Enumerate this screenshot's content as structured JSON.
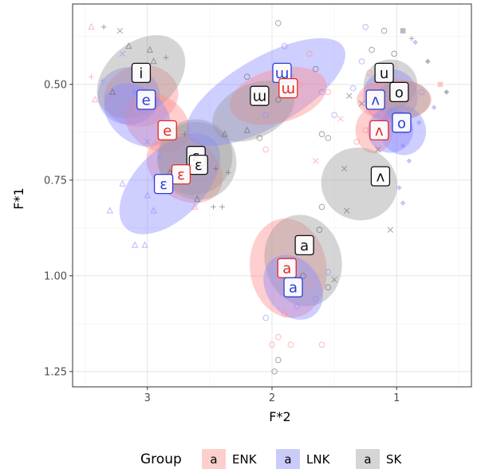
{
  "chart_data": {
    "type": "scatter",
    "title": "",
    "xlabel": "F*2",
    "ylabel": "F*1",
    "x_reversed": true,
    "y_reversed": true,
    "xlim": [
      3.6,
      0.4
    ],
    "ylim": [
      0.29,
      1.29
    ],
    "x_ticks": [
      3,
      2,
      1
    ],
    "x_tick_labels": [
      "3",
      "2",
      "1"
    ],
    "y_ticks": [
      0.5,
      0.75,
      1.0,
      1.25
    ],
    "y_tick_labels": [
      "0.50",
      "0.75",
      "1.00",
      "1.25"
    ],
    "grid": true,
    "legend_position": "bottom",
    "legend": {
      "title": "Group",
      "entries": [
        {
          "symbol": "a",
          "label": "ENK",
          "color": "#f8766d"
        },
        {
          "symbol": "a",
          "label": "LNK",
          "color": "#6a6af0"
        },
        {
          "symbol": "a",
          "label": "SK",
          "color": "#888888"
        }
      ]
    },
    "series_colors": {
      "ENK": {
        "stroke": "#e8281f",
        "fill": "#ff8a8a"
      },
      "LNK": {
        "stroke": "#2a3fd6",
        "fill": "#8a8aff"
      },
      "SK": {
        "stroke": "#111111",
        "fill": "#9a9a9a"
      }
    },
    "ellipses": [
      {
        "group": "ENK",
        "vowel": "i",
        "cx": 3.05,
        "cy": 0.53,
        "rx": 0.3,
        "ry": 0.08,
        "angle": -10
      },
      {
        "group": "LNK",
        "vowel": "i",
        "cx": 3.15,
        "cy": 0.53,
        "rx": 0.25,
        "ry": 0.075,
        "angle": 0
      },
      {
        "group": "SK",
        "vowel": "i",
        "cx": 3.05,
        "cy": 0.48,
        "rx": 0.4,
        "ry": 0.09,
        "angle": -40
      },
      {
        "group": "ENK",
        "vowel": "e",
        "cx": 2.92,
        "cy": 0.6,
        "rx": 0.28,
        "ry": 0.07,
        "angle": 35
      },
      {
        "group": "LNK",
        "vowel": "e",
        "cx": 3.08,
        "cy": 0.58,
        "rx": 0.3,
        "ry": 0.07,
        "angle": 40
      },
      {
        "group": "SK",
        "vowel": "e",
        "cx": 2.62,
        "cy": 0.69,
        "rx": 0.3,
        "ry": 0.1,
        "angle": 40
      },
      {
        "group": "ENK",
        "vowel": "ɛ",
        "cx": 2.7,
        "cy": 0.72,
        "rx": 0.33,
        "ry": 0.08,
        "angle": 35
      },
      {
        "group": "LNK",
        "vowel": "ɛ",
        "cx": 2.82,
        "cy": 0.76,
        "rx": 0.5,
        "ry": 0.09,
        "angle": -45
      },
      {
        "group": "SK",
        "vowel": "ɛ",
        "cx": 2.6,
        "cy": 0.7,
        "rx": 0.32,
        "ry": 0.1,
        "angle": 40
      },
      {
        "group": "LNK",
        "vowel": "ɯ",
        "cx": 2.05,
        "cy": 0.52,
        "rx": 0.72,
        "ry": 0.09,
        "angle": -30
      },
      {
        "group": "ENK",
        "vowel": "ɯ",
        "cx": 1.95,
        "cy": 0.53,
        "rx": 0.4,
        "ry": 0.07,
        "angle": -15
      },
      {
        "group": "SK",
        "vowel": "ɯ",
        "cx": 2.15,
        "cy": 0.57,
        "rx": 0.35,
        "ry": 0.07,
        "angle": -25
      },
      {
        "group": "ENK",
        "vowel": "a",
        "cx": 1.87,
        "cy": 0.98,
        "rx": 0.4,
        "ry": 0.1,
        "angle": 82
      },
      {
        "group": "SK",
        "vowel": "a",
        "cx": 1.75,
        "cy": 0.96,
        "rx": 0.37,
        "ry": 0.1,
        "angle": 76
      },
      {
        "group": "LNK",
        "vowel": "a",
        "cx": 1.83,
        "cy": 1.03,
        "rx": 0.28,
        "ry": 0.07,
        "angle": 55
      },
      {
        "group": "SK",
        "vowel": "u",
        "cx": 1.05,
        "cy": 0.5,
        "rx": 0.2,
        "ry": 0.07,
        "angle": 85
      },
      {
        "group": "LNK",
        "vowel": "u",
        "cx": 1.05,
        "cy": 0.53,
        "rx": 0.22,
        "ry": 0.07,
        "angle": 0
      },
      {
        "group": "ENK",
        "vowel": "o",
        "cx": 1.02,
        "cy": 0.54,
        "rx": 0.3,
        "ry": 0.055,
        "angle": 0
      },
      {
        "group": "LNK",
        "vowel": "o",
        "cx": 0.95,
        "cy": 0.62,
        "rx": 0.2,
        "ry": 0.06,
        "angle": 75
      },
      {
        "group": "SK",
        "vowel": "o",
        "cx": 0.95,
        "cy": 0.54,
        "rx": 0.22,
        "ry": 0.05,
        "angle": 0
      },
      {
        "group": "ENK",
        "vowel": "ʌ",
        "cx": 1.18,
        "cy": 0.62,
        "rx": 0.15,
        "ry": 0.06,
        "angle": 0
      },
      {
        "group": "LNK",
        "vowel": "ʌ",
        "cx": 1.05,
        "cy": 0.62,
        "rx": 0.18,
        "ry": 0.06,
        "angle": 70
      },
      {
        "group": "SK",
        "vowel": "ʌ",
        "cx": 1.3,
        "cy": 0.76,
        "rx": 0.29,
        "ry": 0.1,
        "angle": -70
      }
    ],
    "vowel_labels": [
      {
        "vowel": "i",
        "group": "SK",
        "x": 3.05,
        "y": 0.47
      },
      {
        "vowel": "e",
        "group": "LNK",
        "x": 3.01,
        "y": 0.54
      },
      {
        "vowel": "e",
        "group": "ENK",
        "x": 2.84,
        "y": 0.62
      },
      {
        "vowel": "ɛ",
        "group": "SK",
        "x": 2.61,
        "y": 0.687
      },
      {
        "vowel": "ɛ",
        "group": "SK",
        "x": 2.59,
        "y": 0.71
      },
      {
        "vowel": "ɛ",
        "group": "ENK",
        "x": 2.73,
        "y": 0.735
      },
      {
        "vowel": "ɛ",
        "group": "LNK",
        "x": 2.87,
        "y": 0.76
      },
      {
        "vowel": "ɯ",
        "group": "LNK",
        "x": 1.92,
        "y": 0.47
      },
      {
        "vowel": "ɯ",
        "group": "ENK",
        "x": 1.87,
        "y": 0.51
      },
      {
        "vowel": "ɯ",
        "group": "SK",
        "x": 2.1,
        "y": 0.53
      },
      {
        "vowel": "u",
        "group": "SK",
        "x": 1.1,
        "y": 0.47
      },
      {
        "vowel": "ʌ",
        "group": "LNK",
        "x": 1.17,
        "y": 0.54
      },
      {
        "vowel": "o",
        "group": "SK",
        "x": 0.98,
        "y": 0.52
      },
      {
        "vowel": "o",
        "group": "LNK",
        "x": 0.96,
        "y": 0.6
      },
      {
        "vowel": "ʌ",
        "group": "ENK",
        "x": 1.14,
        "y": 0.62
      },
      {
        "vowel": "ʌ",
        "group": "SK",
        "x": 1.13,
        "y": 0.74
      },
      {
        "vowel": "a",
        "group": "SK",
        "x": 1.74,
        "y": 0.92
      },
      {
        "vowel": "a",
        "group": "ENK",
        "x": 1.88,
        "y": 0.98
      },
      {
        "vowel": "a",
        "group": "LNK",
        "x": 1.83,
        "y": 1.03
      }
    ],
    "points": [
      {
        "g": "SK",
        "x": 3.35,
        "y": 0.35,
        "s": "plus"
      },
      {
        "g": "SK",
        "x": 3.22,
        "y": 0.36,
        "s": "cross"
      },
      {
        "g": "ENK",
        "x": 3.45,
        "y": 0.35,
        "s": "triangle"
      },
      {
        "g": "LNK",
        "x": 3.2,
        "y": 0.42,
        "s": "cross"
      },
      {
        "g": "SK",
        "x": 3.15,
        "y": 0.4,
        "s": "triangle"
      },
      {
        "g": "SK",
        "x": 2.98,
        "y": 0.41,
        "s": "triangle"
      },
      {
        "g": "SK",
        "x": 2.95,
        "y": 0.44,
        "s": "triangle"
      },
      {
        "g": "SK",
        "x": 2.85,
        "y": 0.43,
        "s": "plus"
      },
      {
        "g": "ENK",
        "x": 3.3,
        "y": 0.51,
        "s": "triangle"
      },
      {
        "g": "ENK",
        "x": 3.42,
        "y": 0.54,
        "s": "triangle"
      },
      {
        "g": "LNK",
        "x": 3.36,
        "y": 0.49,
        "s": "plus"
      },
      {
        "g": "SK",
        "x": 3.28,
        "y": 0.52,
        "s": "triangle"
      },
      {
        "g": "ENK",
        "x": 3.45,
        "y": 0.48,
        "s": "plus"
      },
      {
        "g": "LNK",
        "x": 3.1,
        "y": 0.52,
        "s": "square"
      },
      {
        "g": "SK",
        "x": 3.05,
        "y": 0.55,
        "s": "triangle"
      },
      {
        "g": "ENK",
        "x": 2.9,
        "y": 0.57,
        "s": "plus"
      },
      {
        "g": "ENK",
        "x": 2.8,
        "y": 0.62,
        "s": "plus"
      },
      {
        "g": "LNK",
        "x": 3.0,
        "y": 0.65,
        "s": "cross"
      },
      {
        "g": "SK",
        "x": 2.7,
        "y": 0.63,
        "s": "plus"
      },
      {
        "g": "SK",
        "x": 2.55,
        "y": 0.67,
        "s": "plus"
      },
      {
        "g": "ENK",
        "x": 2.65,
        "y": 0.7,
        "s": "plus"
      },
      {
        "g": "LNK",
        "x": 2.9,
        "y": 0.69,
        "s": "plus"
      },
      {
        "g": "SK",
        "x": 2.45,
        "y": 0.72,
        "s": "plus"
      },
      {
        "g": "LNK",
        "x": 3.2,
        "y": 0.76,
        "s": "triangle"
      },
      {
        "g": "SK",
        "x": 2.82,
        "y": 0.73,
        "s": "triangle"
      },
      {
        "g": "ENK",
        "x": 2.75,
        "y": 0.78,
        "s": "triangle"
      },
      {
        "g": "SK",
        "x": 2.6,
        "y": 0.8,
        "s": "triangle"
      },
      {
        "g": "LNK",
        "x": 3.0,
        "y": 0.79,
        "s": "triangle"
      },
      {
        "g": "LNK",
        "x": 3.3,
        "y": 0.83,
        "s": "triangle"
      },
      {
        "g": "LNK",
        "x": 2.95,
        "y": 0.83,
        "s": "triangle"
      },
      {
        "g": "LNK",
        "x": 3.1,
        "y": 0.92,
        "s": "triangle"
      },
      {
        "g": "LNK",
        "x": 3.02,
        "y": 0.92,
        "s": "triangle"
      },
      {
        "g": "SK",
        "x": 2.47,
        "y": 0.82,
        "s": "plus"
      },
      {
        "g": "SK",
        "x": 2.4,
        "y": 0.82,
        "s": "plus"
      },
      {
        "g": "ENK",
        "x": 2.62,
        "y": 0.82,
        "s": "triangle"
      },
      {
        "g": "SK",
        "x": 2.35,
        "y": 0.73,
        "s": "plus"
      },
      {
        "g": "SK",
        "x": 2.38,
        "y": 0.63,
        "s": "triangle"
      },
      {
        "g": "SK",
        "x": 2.2,
        "y": 0.62,
        "s": "triangle"
      },
      {
        "g": "LNK",
        "x": 2.05,
        "y": 0.58,
        "s": "circle"
      },
      {
        "g": "SK",
        "x": 1.95,
        "y": 0.54,
        "s": "circle"
      },
      {
        "g": "LNK",
        "x": 1.85,
        "y": 0.48,
        "s": "circle"
      },
      {
        "g": "ENK",
        "x": 1.78,
        "y": 0.5,
        "s": "circle"
      },
      {
        "g": "SK",
        "x": 1.65,
        "y": 0.46,
        "s": "circle"
      },
      {
        "g": "LNK",
        "x": 1.6,
        "y": 0.52,
        "s": "circle"
      },
      {
        "g": "ENK",
        "x": 1.55,
        "y": 0.52,
        "s": "circle"
      },
      {
        "g": "SK",
        "x": 1.95,
        "y": 0.34,
        "s": "circle"
      },
      {
        "g": "LNK",
        "x": 1.9,
        "y": 0.4,
        "s": "circle"
      },
      {
        "g": "SK",
        "x": 2.1,
        "y": 0.64,
        "s": "circle"
      },
      {
        "g": "SK",
        "x": 2.2,
        "y": 0.48,
        "s": "circle"
      },
      {
        "g": "ENK",
        "x": 1.7,
        "y": 0.42,
        "s": "circle"
      },
      {
        "g": "ENK",
        "x": 1.45,
        "y": 0.59,
        "s": "cross"
      },
      {
        "g": "ENK",
        "x": 1.65,
        "y": 0.7,
        "s": "cross"
      },
      {
        "g": "SK",
        "x": 1.6,
        "y": 0.63,
        "s": "circle"
      },
      {
        "g": "LNK",
        "x": 1.5,
        "y": 0.58,
        "s": "circle"
      },
      {
        "g": "SK",
        "x": 1.55,
        "y": 0.64,
        "s": "circle"
      },
      {
        "g": "ENK",
        "x": 2.05,
        "y": 0.67,
        "s": "circle"
      },
      {
        "g": "ENK",
        "x": 1.9,
        "y": 1.1,
        "s": "circle"
      },
      {
        "g": "ENK",
        "x": 1.95,
        "y": 1.16,
        "s": "circle"
      },
      {
        "g": "ENK",
        "x": 1.85,
        "y": 1.18,
        "s": "circle"
      },
      {
        "g": "ENK",
        "x": 2.0,
        "y": 1.18,
        "s": "circle"
      },
      {
        "g": "SK",
        "x": 1.98,
        "y": 1.25,
        "s": "circle"
      },
      {
        "g": "SK",
        "x": 1.95,
        "y": 1.22,
        "s": "circle"
      },
      {
        "g": "LNK",
        "x": 2.05,
        "y": 1.11,
        "s": "circle"
      },
      {
        "g": "SK",
        "x": 1.75,
        "y": 1.0,
        "s": "circle"
      },
      {
        "g": "SK",
        "x": 1.6,
        "y": 0.82,
        "s": "circle"
      },
      {
        "g": "SK",
        "x": 1.62,
        "y": 0.88,
        "s": "circle"
      },
      {
        "g": "ENK",
        "x": 1.72,
        "y": 0.9,
        "s": "circle"
      },
      {
        "g": "SK",
        "x": 1.5,
        "y": 1.01,
        "s": "cross"
      },
      {
        "g": "LNK",
        "x": 1.55,
        "y": 0.99,
        "s": "circle"
      },
      {
        "g": "LNK",
        "x": 1.65,
        "y": 1.06,
        "s": "circle"
      },
      {
        "g": "ENK",
        "x": 1.6,
        "y": 1.18,
        "s": "circle"
      },
      {
        "g": "SK",
        "x": 1.55,
        "y": 1.03,
        "s": "circle"
      },
      {
        "g": "LNK",
        "x": 1.8,
        "y": 1.08,
        "s": "circle"
      },
      {
        "g": "ENK",
        "x": 1.7,
        "y": 1.02,
        "s": "circle"
      },
      {
        "g": "SK",
        "x": 1.1,
        "y": 0.36,
        "s": "circle"
      },
      {
        "g": "LNK",
        "x": 1.25,
        "y": 0.35,
        "s": "circle"
      },
      {
        "g": "SK",
        "x": 0.95,
        "y": 0.36,
        "s": "square"
      },
      {
        "g": "SK",
        "x": 0.88,
        "y": 0.38,
        "s": "plus"
      },
      {
        "g": "LNK",
        "x": 0.85,
        "y": 0.39,
        "s": "diamond"
      },
      {
        "g": "SK",
        "x": 1.2,
        "y": 0.41,
        "s": "circle"
      },
      {
        "g": "SK",
        "x": 1.02,
        "y": 0.42,
        "s": "circle"
      },
      {
        "g": "LNK",
        "x": 1.28,
        "y": 0.44,
        "s": "circle"
      },
      {
        "g": "ENK",
        "x": 1.22,
        "y": 0.47,
        "s": "circle"
      },
      {
        "g": "SK",
        "x": 0.75,
        "y": 0.44,
        "s": "diamond"
      },
      {
        "g": "LNK",
        "x": 0.8,
        "y": 0.52,
        "s": "circle"
      },
      {
        "g": "ENK",
        "x": 0.65,
        "y": 0.5,
        "s": "square"
      },
      {
        "g": "SK",
        "x": 0.6,
        "y": 0.52,
        "s": "diamond"
      },
      {
        "g": "LNK",
        "x": 0.7,
        "y": 0.56,
        "s": "diamond"
      },
      {
        "g": "SK",
        "x": 1.28,
        "y": 0.55,
        "s": "cross"
      },
      {
        "g": "SK",
        "x": 1.38,
        "y": 0.53,
        "s": "cross"
      },
      {
        "g": "LNK",
        "x": 1.35,
        "y": 0.51,
        "s": "circle"
      },
      {
        "g": "ENK",
        "x": 1.25,
        "y": 0.62,
        "s": "circle"
      },
      {
        "g": "ENK",
        "x": 1.32,
        "y": 0.65,
        "s": "circle"
      },
      {
        "g": "SK",
        "x": 1.15,
        "y": 0.67,
        "s": "cross"
      },
      {
        "g": "LNK",
        "x": 0.95,
        "y": 0.66,
        "s": "diamond"
      },
      {
        "g": "LNK",
        "x": 0.9,
        "y": 0.7,
        "s": "diamond"
      },
      {
        "g": "LNK",
        "x": 0.98,
        "y": 0.77,
        "s": "diamond"
      },
      {
        "g": "LNK",
        "x": 0.95,
        "y": 0.81,
        "s": "diamond"
      },
      {
        "g": "ENK",
        "x": 1.1,
        "y": 0.57,
        "s": "circle"
      },
      {
        "g": "SK",
        "x": 1.4,
        "y": 0.83,
        "s": "cross"
      },
      {
        "g": "SK",
        "x": 1.05,
        "y": 0.88,
        "s": "cross"
      },
      {
        "g": "SK",
        "x": 1.42,
        "y": 0.72,
        "s": "cross"
      },
      {
        "g": "LNK",
        "x": 0.82,
        "y": 0.6,
        "s": "diamond"
      }
    ]
  }
}
